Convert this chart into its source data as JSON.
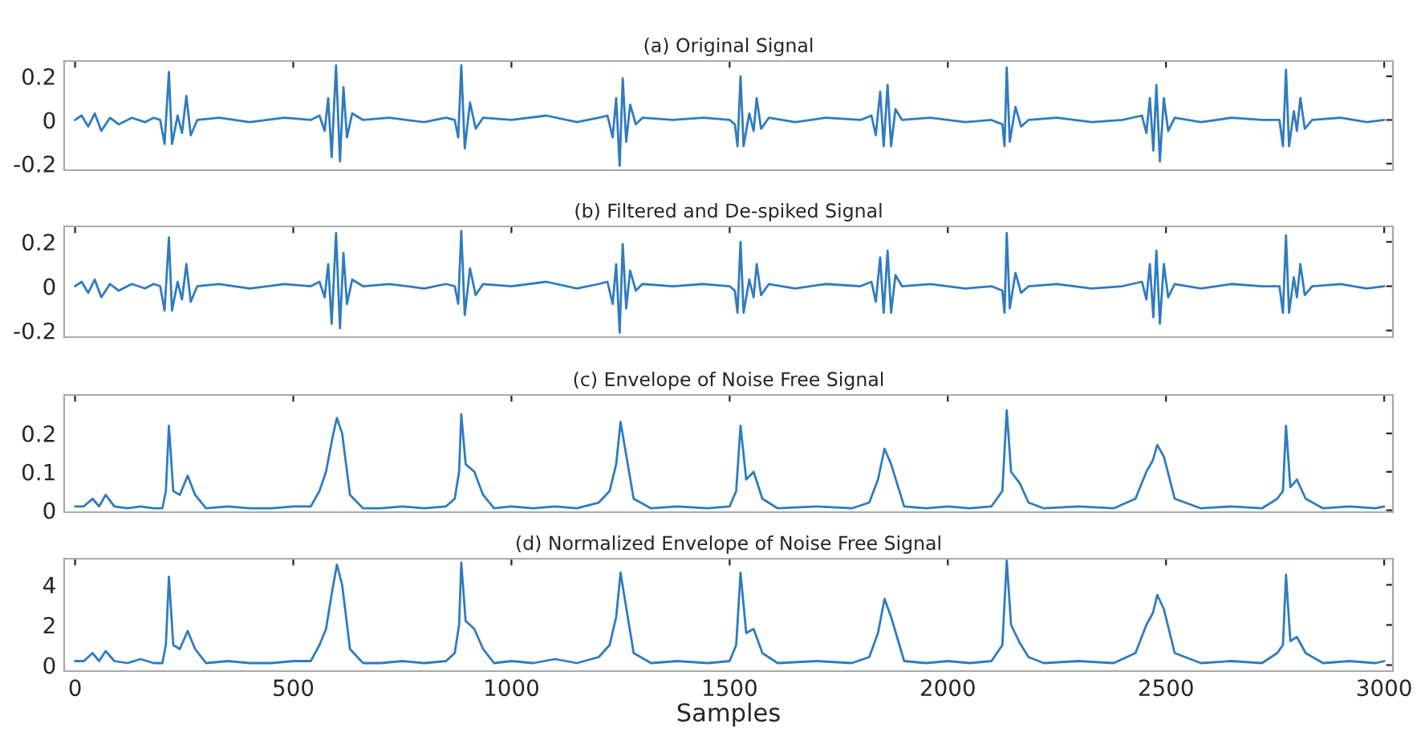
{
  "chart_data": [
    {
      "type": "line",
      "title": "(a) Original Signal",
      "xlim": [
        -25,
        3020
      ],
      "xticks": [
        0,
        500,
        1000,
        1500,
        2000,
        2500,
        3000
      ],
      "ylim": [
        -0.23,
        0.27
      ],
      "yticks": [
        -0.2,
        0,
        0.2
      ],
      "tick_labels": "y",
      "series": [
        {
          "color": "#2f7bbf",
          "x": [
            0,
            15,
            30,
            45,
            60,
            80,
            100,
            130,
            160,
            180,
            195,
            205,
            215,
            222,
            235,
            245,
            255,
            265,
            280,
            330,
            400,
            480,
            540,
            560,
            572,
            580,
            588,
            598,
            607,
            615,
            623,
            635,
            660,
            720,
            800,
            850,
            870,
            878,
            885,
            893,
            905,
            918,
            935,
            1000,
            1080,
            1150,
            1200,
            1220,
            1232,
            1240,
            1248,
            1255,
            1263,
            1272,
            1285,
            1300,
            1370,
            1440,
            1500,
            1512,
            1518,
            1525,
            1532,
            1545,
            1555,
            1562,
            1572,
            1590,
            1650,
            1720,
            1800,
            1825,
            1835,
            1845,
            1853,
            1862,
            1870,
            1880,
            1895,
            1960,
            2040,
            2100,
            2125,
            2130,
            2135,
            2142,
            2155,
            2168,
            2185,
            2250,
            2330,
            2400,
            2445,
            2455,
            2463,
            2471,
            2478,
            2486,
            2495,
            2505,
            2520,
            2580,
            2650,
            2720,
            2760,
            2768,
            2775,
            2782,
            2793,
            2800,
            2808,
            2818,
            2835,
            2900,
            2960,
            3000
          ],
          "values": [
            0,
            0.02,
            -0.03,
            0.03,
            -0.05,
            0.01,
            -0.02,
            0.01,
            -0.01,
            0.01,
            0,
            -0.11,
            0.22,
            -0.11,
            0.02,
            -0.06,
            0.11,
            -0.07,
            0,
            0.01,
            -0.01,
            0.01,
            0,
            0.02,
            -0.05,
            0.1,
            -0.17,
            0.25,
            -0.19,
            0.15,
            -0.08,
            0.03,
            0,
            0.01,
            -0.01,
            0.01,
            0,
            -0.08,
            0.25,
            -0.13,
            0.08,
            -0.04,
            0.01,
            0,
            0.02,
            -0.01,
            0.01,
            0.02,
            -0.08,
            0.1,
            -0.21,
            0.19,
            -0.1,
            0.07,
            -0.02,
            0.01,
            0,
            0.01,
            0,
            -0.02,
            -0.12,
            0.2,
            -0.12,
            0.03,
            -0.05,
            0.1,
            -0.04,
            0.01,
            -0.01,
            0.01,
            0,
            0.02,
            -0.07,
            0.13,
            -0.12,
            0.16,
            -0.12,
            0.05,
            0,
            0.01,
            -0.01,
            0,
            -0.02,
            -0.12,
            0.24,
            -0.1,
            0.06,
            -0.03,
            0,
            0.01,
            -0.01,
            0,
            0.02,
            -0.06,
            0.1,
            -0.14,
            0.16,
            -0.19,
            0.1,
            -0.05,
            0.01,
            -0.01,
            0.01,
            0,
            0,
            -0.12,
            0.23,
            -0.12,
            0.04,
            -0.05,
            0.1,
            -0.04,
            0,
            0.01,
            -0.01,
            0
          ]
        }
      ]
    },
    {
      "type": "line",
      "title": "(b) Filtered and De-spiked Signal",
      "xlim": [
        -25,
        3020
      ],
      "xticks": [
        0,
        500,
        1000,
        1500,
        2000,
        2500,
        3000
      ],
      "ylim": [
        -0.23,
        0.27
      ],
      "yticks": [
        -0.2,
        0,
        0.2
      ],
      "tick_labels": "y",
      "series": [
        {
          "color": "#2f7bbf",
          "x": [
            0,
            15,
            30,
            45,
            60,
            80,
            100,
            130,
            160,
            180,
            195,
            205,
            215,
            222,
            235,
            245,
            255,
            265,
            280,
            330,
            400,
            480,
            540,
            560,
            572,
            580,
            588,
            598,
            607,
            615,
            623,
            635,
            660,
            720,
            800,
            850,
            870,
            878,
            885,
            893,
            905,
            918,
            935,
            1000,
            1080,
            1150,
            1200,
            1220,
            1232,
            1240,
            1248,
            1255,
            1263,
            1272,
            1285,
            1300,
            1370,
            1440,
            1500,
            1512,
            1518,
            1525,
            1532,
            1545,
            1555,
            1562,
            1572,
            1590,
            1650,
            1720,
            1800,
            1825,
            1835,
            1845,
            1853,
            1862,
            1870,
            1880,
            1895,
            1960,
            2040,
            2100,
            2125,
            2130,
            2135,
            2142,
            2155,
            2168,
            2185,
            2250,
            2330,
            2400,
            2445,
            2455,
            2463,
            2471,
            2478,
            2486,
            2495,
            2505,
            2520,
            2580,
            2650,
            2720,
            2760,
            2768,
            2775,
            2782,
            2793,
            2800,
            2808,
            2818,
            2835,
            2900,
            2960,
            3000
          ],
          "values": [
            0,
            0.02,
            -0.03,
            0.03,
            -0.05,
            0.01,
            -0.02,
            0.01,
            -0.01,
            0.01,
            0,
            -0.11,
            0.22,
            -0.11,
            0.02,
            -0.06,
            0.1,
            -0.07,
            0,
            0.01,
            -0.01,
            0.01,
            0,
            0.02,
            -0.05,
            0.1,
            -0.17,
            0.24,
            -0.19,
            0.15,
            -0.08,
            0.03,
            0,
            0.01,
            -0.01,
            0.01,
            0,
            -0.08,
            0.25,
            -0.13,
            0.08,
            -0.04,
            0.01,
            0,
            0.02,
            -0.01,
            0.01,
            0.02,
            -0.08,
            0.1,
            -0.21,
            0.19,
            -0.1,
            0.07,
            -0.02,
            0.01,
            0,
            0.01,
            0,
            -0.02,
            -0.12,
            0.2,
            -0.12,
            0.03,
            -0.05,
            0.1,
            -0.04,
            0.01,
            -0.01,
            0.01,
            0,
            0.02,
            -0.07,
            0.13,
            -0.12,
            0.16,
            -0.12,
            0.05,
            0,
            0.01,
            -0.01,
            0,
            -0.02,
            -0.12,
            0.24,
            -0.1,
            0.06,
            -0.03,
            0,
            0.01,
            -0.01,
            0,
            0.02,
            -0.06,
            0.1,
            -0.14,
            0.16,
            -0.17,
            0.1,
            -0.05,
            0.01,
            -0.01,
            0.01,
            0,
            0,
            -0.12,
            0.23,
            -0.12,
            0.04,
            -0.05,
            0.1,
            -0.04,
            0,
            0.01,
            -0.01,
            0
          ]
        }
      ]
    },
    {
      "type": "line",
      "title": "(c) Envelope of Noise Free Signal",
      "xlim": [
        -25,
        3020
      ],
      "xticks": [
        0,
        500,
        1000,
        1500,
        2000,
        2500,
        3000
      ],
      "ylim": [
        -0.005,
        0.3
      ],
      "yticks": [
        0,
        0.1,
        0.2
      ],
      "tick_labels": "y",
      "series": [
        {
          "color": "#2f7bbf",
          "x": [
            0,
            20,
            40,
            55,
            70,
            90,
            120,
            150,
            180,
            200,
            208,
            215,
            225,
            240,
            258,
            275,
            300,
            350,
            400,
            450,
            500,
            540,
            560,
            575,
            590,
            600,
            612,
            630,
            660,
            700,
            750,
            800,
            850,
            870,
            880,
            885,
            895,
            915,
            935,
            960,
            1000,
            1050,
            1100,
            1150,
            1200,
            1225,
            1240,
            1250,
            1262,
            1280,
            1320,
            1380,
            1450,
            1500,
            1515,
            1525,
            1538,
            1555,
            1575,
            1610,
            1700,
            1780,
            1820,
            1840,
            1855,
            1870,
            1900,
            1950,
            2000,
            2050,
            2100,
            2125,
            2135,
            2145,
            2165,
            2185,
            2220,
            2300,
            2380,
            2430,
            2455,
            2470,
            2480,
            2495,
            2520,
            2580,
            2650,
            2720,
            2755,
            2768,
            2775,
            2785,
            2800,
            2820,
            2860,
            2920,
            2980,
            3000
          ],
          "values": [
            0.01,
            0.01,
            0.03,
            0.01,
            0.04,
            0.01,
            0.005,
            0.01,
            0.005,
            0.005,
            0.05,
            0.22,
            0.05,
            0.04,
            0.09,
            0.04,
            0.005,
            0.01,
            0.005,
            0.005,
            0.01,
            0.01,
            0.05,
            0.1,
            0.19,
            0.24,
            0.2,
            0.04,
            0.005,
            0.005,
            0.01,
            0.005,
            0.01,
            0.03,
            0.1,
            0.25,
            0.12,
            0.1,
            0.04,
            0.005,
            0.01,
            0.005,
            0.01,
            0.005,
            0.02,
            0.05,
            0.12,
            0.23,
            0.15,
            0.03,
            0.005,
            0.01,
            0.005,
            0.01,
            0.05,
            0.22,
            0.08,
            0.1,
            0.03,
            0.005,
            0.01,
            0.005,
            0.02,
            0.08,
            0.16,
            0.12,
            0.01,
            0.005,
            0.01,
            0.005,
            0.01,
            0.05,
            0.26,
            0.1,
            0.07,
            0.02,
            0.005,
            0.01,
            0.005,
            0.03,
            0.1,
            0.13,
            0.17,
            0.14,
            0.03,
            0.005,
            0.01,
            0.005,
            0.03,
            0.05,
            0.22,
            0.06,
            0.08,
            0.03,
            0.005,
            0.01,
            0.005,
            0.01
          ]
        }
      ]
    },
    {
      "type": "line",
      "title": "(d) Normalized Envelope of Noise Free Signal",
      "xlabel": "Samples",
      "xlim": [
        -25,
        3020
      ],
      "xticks": [
        0,
        500,
        1000,
        1500,
        2000,
        2500,
        3000
      ],
      "ylim": [
        -0.3,
        5.3
      ],
      "yticks": [
        0,
        2,
        4
      ],
      "series": [
        {
          "color": "#2f7bbf",
          "x": [
            0,
            20,
            40,
            55,
            70,
            90,
            120,
            150,
            180,
            200,
            208,
            215,
            225,
            240,
            258,
            275,
            300,
            350,
            400,
            450,
            500,
            540,
            560,
            575,
            590,
            600,
            612,
            630,
            660,
            700,
            750,
            800,
            850,
            870,
            880,
            885,
            895,
            915,
            935,
            960,
            1000,
            1050,
            1100,
            1150,
            1200,
            1225,
            1240,
            1250,
            1262,
            1280,
            1320,
            1380,
            1450,
            1500,
            1515,
            1525,
            1538,
            1555,
            1575,
            1610,
            1700,
            1780,
            1820,
            1840,
            1855,
            1870,
            1900,
            1950,
            2000,
            2050,
            2100,
            2125,
            2135,
            2145,
            2165,
            2185,
            2220,
            2300,
            2380,
            2430,
            2455,
            2470,
            2480,
            2495,
            2520,
            2580,
            2650,
            2720,
            2755,
            2768,
            2775,
            2785,
            2800,
            2820,
            2860,
            2920,
            2980,
            3000
          ],
          "values": [
            0.2,
            0.2,
            0.6,
            0.2,
            0.7,
            0.2,
            0.1,
            0.3,
            0.1,
            0.1,
            1.0,
            4.4,
            1.0,
            0.8,
            1.7,
            0.8,
            0.1,
            0.2,
            0.1,
            0.1,
            0.2,
            0.2,
            1.0,
            1.8,
            3.8,
            5.0,
            4.0,
            0.8,
            0.1,
            0.1,
            0.2,
            0.1,
            0.2,
            0.6,
            2.0,
            5.1,
            2.2,
            1.8,
            0.8,
            0.1,
            0.2,
            0.1,
            0.3,
            0.1,
            0.4,
            1.0,
            2.4,
            4.6,
            3.0,
            0.6,
            0.1,
            0.2,
            0.1,
            0.2,
            1.0,
            4.6,
            1.6,
            1.8,
            0.6,
            0.1,
            0.2,
            0.1,
            0.4,
            1.6,
            3.3,
            2.4,
            0.2,
            0.1,
            0.2,
            0.1,
            0.2,
            1.0,
            5.2,
            2.0,
            1.1,
            0.4,
            0.1,
            0.2,
            0.1,
            0.6,
            2.0,
            2.6,
            3.5,
            2.8,
            0.6,
            0.1,
            0.2,
            0.1,
            0.6,
            1.0,
            4.5,
            1.2,
            1.4,
            0.6,
            0.1,
            0.2,
            0.1,
            0.2
          ]
        }
      ]
    }
  ]
}
